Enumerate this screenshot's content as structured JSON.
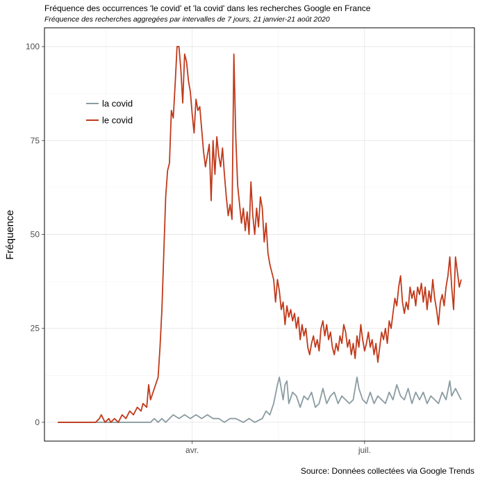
{
  "chart_data": {
    "type": "line",
    "title": "Fréquence des occurrences 'le covid' et 'la covid' dans les recherches Google en France",
    "subtitle": "Fréquence des recherches aggregées par intervalles de 7 jours, 21 janvier-21 août 2020",
    "caption": "Source: Données collectées via Google Trends",
    "xlabel": "",
    "ylabel": "Fréquence",
    "ylim": [
      -5,
      105
    ],
    "xlim": [
      "2020-01-14",
      "2020-08-28"
    ],
    "y_ticks": [
      0,
      25,
      50,
      75,
      100
    ],
    "y_tick_labels": [
      "0",
      "25",
      "50",
      "75",
      "100"
    ],
    "x_ticks": [
      "2020-04-01",
      "2020-07-01"
    ],
    "x_tick_labels": [
      "avr.",
      "juil."
    ],
    "grid": true,
    "legend_position": "top-left",
    "series": [
      {
        "name": "la covid",
        "color": "#8a9ba1",
        "points": [
          [
            "2020-01-21",
            0
          ],
          [
            "2020-02-01",
            0
          ],
          [
            "2020-02-15",
            0
          ],
          [
            "2020-03-01",
            0
          ],
          [
            "2020-03-10",
            0
          ],
          [
            "2020-03-12",
            1
          ],
          [
            "2020-03-14",
            0
          ],
          [
            "2020-03-16",
            1
          ],
          [
            "2020-03-18",
            0
          ],
          [
            "2020-03-20",
            1
          ],
          [
            "2020-03-22",
            2
          ],
          [
            "2020-03-25",
            1
          ],
          [
            "2020-03-28",
            2
          ],
          [
            "2020-03-31",
            1
          ],
          [
            "2020-04-03",
            2
          ],
          [
            "2020-04-06",
            1
          ],
          [
            "2020-04-09",
            2
          ],
          [
            "2020-04-12",
            1
          ],
          [
            "2020-04-15",
            1
          ],
          [
            "2020-04-18",
            0
          ],
          [
            "2020-04-21",
            1
          ],
          [
            "2020-04-24",
            1
          ],
          [
            "2020-04-28",
            0
          ],
          [
            "2020-05-01",
            1
          ],
          [
            "2020-05-04",
            0
          ],
          [
            "2020-05-08",
            1
          ],
          [
            "2020-05-10",
            3
          ],
          [
            "2020-05-12",
            2
          ],
          [
            "2020-05-14",
            5
          ],
          [
            "2020-05-16",
            10
          ],
          [
            "2020-05-17",
            12
          ],
          [
            "2020-05-18",
            9
          ],
          [
            "2020-05-19",
            6
          ],
          [
            "2020-05-20",
            10
          ],
          [
            "2020-05-21",
            11
          ],
          [
            "2020-05-22",
            5
          ],
          [
            "2020-05-24",
            8
          ],
          [
            "2020-05-26",
            7
          ],
          [
            "2020-05-28",
            4
          ],
          [
            "2020-05-30",
            7
          ],
          [
            "2020-06-01",
            6
          ],
          [
            "2020-06-03",
            8
          ],
          [
            "2020-06-05",
            4
          ],
          [
            "2020-06-07",
            5
          ],
          [
            "2020-06-09",
            9
          ],
          [
            "2020-06-11",
            5
          ],
          [
            "2020-06-13",
            7
          ],
          [
            "2020-06-15",
            8
          ],
          [
            "2020-06-17",
            5
          ],
          [
            "2020-06-19",
            7
          ],
          [
            "2020-06-21",
            6
          ],
          [
            "2020-06-23",
            5
          ],
          [
            "2020-06-25",
            6
          ],
          [
            "2020-06-27",
            12
          ],
          [
            "2020-06-28",
            9
          ],
          [
            "2020-06-30",
            6
          ],
          [
            "2020-07-02",
            5
          ],
          [
            "2020-07-04",
            8
          ],
          [
            "2020-07-06",
            5
          ],
          [
            "2020-07-08",
            7
          ],
          [
            "2020-07-10",
            6
          ],
          [
            "2020-07-12",
            5
          ],
          [
            "2020-07-14",
            8
          ],
          [
            "2020-07-16",
            6
          ],
          [
            "2020-07-18",
            10
          ],
          [
            "2020-07-20",
            7
          ],
          [
            "2020-07-22",
            6
          ],
          [
            "2020-07-24",
            9
          ],
          [
            "2020-07-26",
            5
          ],
          [
            "2020-07-28",
            8
          ],
          [
            "2020-07-30",
            6
          ],
          [
            "2020-08-01",
            8
          ],
          [
            "2020-08-03",
            5
          ],
          [
            "2020-08-05",
            7
          ],
          [
            "2020-08-07",
            6
          ],
          [
            "2020-08-09",
            5
          ],
          [
            "2020-08-11",
            8
          ],
          [
            "2020-08-13",
            6
          ],
          [
            "2020-08-15",
            11
          ],
          [
            "2020-08-16",
            7
          ],
          [
            "2020-08-18",
            9
          ],
          [
            "2020-08-20",
            7
          ],
          [
            "2020-08-21",
            6
          ]
        ]
      },
      {
        "name": "le covid",
        "color": "#c0391a",
        "points": [
          [
            "2020-01-21",
            0
          ],
          [
            "2020-02-01",
            0
          ],
          [
            "2020-02-10",
            0
          ],
          [
            "2020-02-12",
            1
          ],
          [
            "2020-02-13",
            2
          ],
          [
            "2020-02-14",
            1
          ],
          [
            "2020-02-15",
            0
          ],
          [
            "2020-02-17",
            1
          ],
          [
            "2020-02-18",
            0
          ],
          [
            "2020-02-20",
            1
          ],
          [
            "2020-02-22",
            0
          ],
          [
            "2020-02-24",
            2
          ],
          [
            "2020-02-26",
            1
          ],
          [
            "2020-02-28",
            3
          ],
          [
            "2020-03-01",
            2
          ],
          [
            "2020-03-03",
            4
          ],
          [
            "2020-03-05",
            3
          ],
          [
            "2020-03-06",
            5
          ],
          [
            "2020-03-08",
            4
          ],
          [
            "2020-03-09",
            10
          ],
          [
            "2020-03-10",
            6
          ],
          [
            "2020-03-12",
            9
          ],
          [
            "2020-03-14",
            12
          ],
          [
            "2020-03-15",
            20
          ],
          [
            "2020-03-16",
            30
          ],
          [
            "2020-03-17",
            45
          ],
          [
            "2020-03-18",
            60
          ],
          [
            "2020-03-19",
            67
          ],
          [
            "2020-03-20",
            69
          ],
          [
            "2020-03-21",
            83
          ],
          [
            "2020-03-22",
            81
          ],
          [
            "2020-03-23",
            90
          ],
          [
            "2020-03-24",
            100
          ],
          [
            "2020-03-25",
            100
          ],
          [
            "2020-03-26",
            94
          ],
          [
            "2020-03-27",
            85
          ],
          [
            "2020-03-28",
            98
          ],
          [
            "2020-03-29",
            96
          ],
          [
            "2020-03-30",
            91
          ],
          [
            "2020-03-31",
            88
          ],
          [
            "2020-04-01",
            82
          ],
          [
            "2020-04-02",
            77
          ],
          [
            "2020-04-03",
            86
          ],
          [
            "2020-04-04",
            83
          ],
          [
            "2020-04-05",
            84
          ],
          [
            "2020-04-06",
            78
          ],
          [
            "2020-04-07",
            72
          ],
          [
            "2020-04-08",
            68
          ],
          [
            "2020-04-09",
            71
          ],
          [
            "2020-04-10",
            74
          ],
          [
            "2020-04-11",
            59
          ],
          [
            "2020-04-12",
            75
          ],
          [
            "2020-04-13",
            66
          ],
          [
            "2020-04-14",
            76
          ],
          [
            "2020-04-15",
            71
          ],
          [
            "2020-04-16",
            68
          ],
          [
            "2020-04-17",
            73
          ],
          [
            "2020-04-18",
            66
          ],
          [
            "2020-04-19",
            60
          ],
          [
            "2020-04-20",
            55
          ],
          [
            "2020-04-21",
            58
          ],
          [
            "2020-04-22",
            54
          ],
          [
            "2020-04-23",
            98
          ],
          [
            "2020-04-24",
            76
          ],
          [
            "2020-04-25",
            63
          ],
          [
            "2020-04-26",
            58
          ],
          [
            "2020-04-27",
            53
          ],
          [
            "2020-04-28",
            57
          ],
          [
            "2020-04-29",
            51
          ],
          [
            "2020-04-30",
            56
          ],
          [
            "2020-05-01",
            50
          ],
          [
            "2020-05-02",
            64
          ],
          [
            "2020-05-03",
            55
          ],
          [
            "2020-05-04",
            50
          ],
          [
            "2020-05-05",
            57
          ],
          [
            "2020-05-06",
            52
          ],
          [
            "2020-05-07",
            60
          ],
          [
            "2020-05-08",
            57
          ],
          [
            "2020-05-09",
            48
          ],
          [
            "2020-05-10",
            53
          ],
          [
            "2020-05-11",
            45
          ],
          [
            "2020-05-12",
            42
          ],
          [
            "2020-05-13",
            40
          ],
          [
            "2020-05-14",
            38
          ],
          [
            "2020-05-15",
            32
          ],
          [
            "2020-05-16",
            38
          ],
          [
            "2020-05-17",
            35
          ],
          [
            "2020-05-18",
            30
          ],
          [
            "2020-05-19",
            32
          ],
          [
            "2020-05-20",
            26
          ],
          [
            "2020-05-21",
            31
          ],
          [
            "2020-05-22",
            28
          ],
          [
            "2020-05-23",
            30
          ],
          [
            "2020-05-24",
            27
          ],
          [
            "2020-05-25",
            29
          ],
          [
            "2020-05-26",
            25
          ],
          [
            "2020-05-27",
            28
          ],
          [
            "2020-05-28",
            22
          ],
          [
            "2020-05-29",
            26
          ],
          [
            "2020-05-30",
            23
          ],
          [
            "2020-05-31",
            25
          ],
          [
            "2020-06-01",
            20
          ],
          [
            "2020-06-02",
            18
          ],
          [
            "2020-06-03",
            21
          ],
          [
            "2020-06-04",
            23
          ],
          [
            "2020-06-05",
            20
          ],
          [
            "2020-06-06",
            22
          ],
          [
            "2020-06-07",
            19
          ],
          [
            "2020-06-08",
            25
          ],
          [
            "2020-06-09",
            27
          ],
          [
            "2020-06-10",
            23
          ],
          [
            "2020-06-11",
            26
          ],
          [
            "2020-06-12",
            22
          ],
          [
            "2020-06-13",
            24
          ],
          [
            "2020-06-14",
            20
          ],
          [
            "2020-06-15",
            18
          ],
          [
            "2020-06-16",
            21
          ],
          [
            "2020-06-17",
            19
          ],
          [
            "2020-06-18",
            23
          ],
          [
            "2020-06-19",
            21
          ],
          [
            "2020-06-20",
            26
          ],
          [
            "2020-06-21",
            24
          ],
          [
            "2020-06-22",
            20
          ],
          [
            "2020-06-23",
            22
          ],
          [
            "2020-06-24",
            18
          ],
          [
            "2020-06-25",
            21
          ],
          [
            "2020-06-26",
            17
          ],
          [
            "2020-06-27",
            23
          ],
          [
            "2020-06-28",
            20
          ],
          [
            "2020-06-29",
            26
          ],
          [
            "2020-06-30",
            22
          ],
          [
            "2020-07-01",
            19
          ],
          [
            "2020-07-02",
            21
          ],
          [
            "2020-07-03",
            24
          ],
          [
            "2020-07-04",
            20
          ],
          [
            "2020-07-05",
            22
          ],
          [
            "2020-07-06",
            18
          ],
          [
            "2020-07-07",
            21
          ],
          [
            "2020-07-08",
            16
          ],
          [
            "2020-07-09",
            20
          ],
          [
            "2020-07-10",
            24
          ],
          [
            "2020-07-11",
            22
          ],
          [
            "2020-07-12",
            25
          ],
          [
            "2020-07-13",
            21
          ],
          [
            "2020-07-14",
            27
          ],
          [
            "2020-07-15",
            25
          ],
          [
            "2020-07-16",
            29
          ],
          [
            "2020-07-17",
            33
          ],
          [
            "2020-07-18",
            31
          ],
          [
            "2020-07-19",
            36
          ],
          [
            "2020-07-20",
            39
          ],
          [
            "2020-07-21",
            32
          ],
          [
            "2020-07-22",
            29
          ],
          [
            "2020-07-23",
            32
          ],
          [
            "2020-07-24",
            30
          ],
          [
            "2020-07-25",
            36
          ],
          [
            "2020-07-26",
            33
          ],
          [
            "2020-07-27",
            35
          ],
          [
            "2020-07-28",
            31
          ],
          [
            "2020-07-29",
            36
          ],
          [
            "2020-07-30",
            34
          ],
          [
            "2020-07-31",
            37
          ],
          [
            "2020-08-01",
            32
          ],
          [
            "2020-08-02",
            36
          ],
          [
            "2020-08-03",
            30
          ],
          [
            "2020-08-04",
            35
          ],
          [
            "2020-08-05",
            32
          ],
          [
            "2020-08-06",
            38
          ],
          [
            "2020-08-07",
            33
          ],
          [
            "2020-08-08",
            30
          ],
          [
            "2020-08-09",
            26
          ],
          [
            "2020-08-10",
            32
          ],
          [
            "2020-08-11",
            34
          ],
          [
            "2020-08-12",
            31
          ],
          [
            "2020-08-13",
            36
          ],
          [
            "2020-08-14",
            39
          ],
          [
            "2020-08-15",
            44
          ],
          [
            "2020-08-16",
            36
          ],
          [
            "2020-08-17",
            30
          ],
          [
            "2020-08-18",
            44
          ],
          [
            "2020-08-19",
            40
          ],
          [
            "2020-08-20",
            36
          ],
          [
            "2020-08-21",
            38
          ]
        ]
      }
    ]
  }
}
